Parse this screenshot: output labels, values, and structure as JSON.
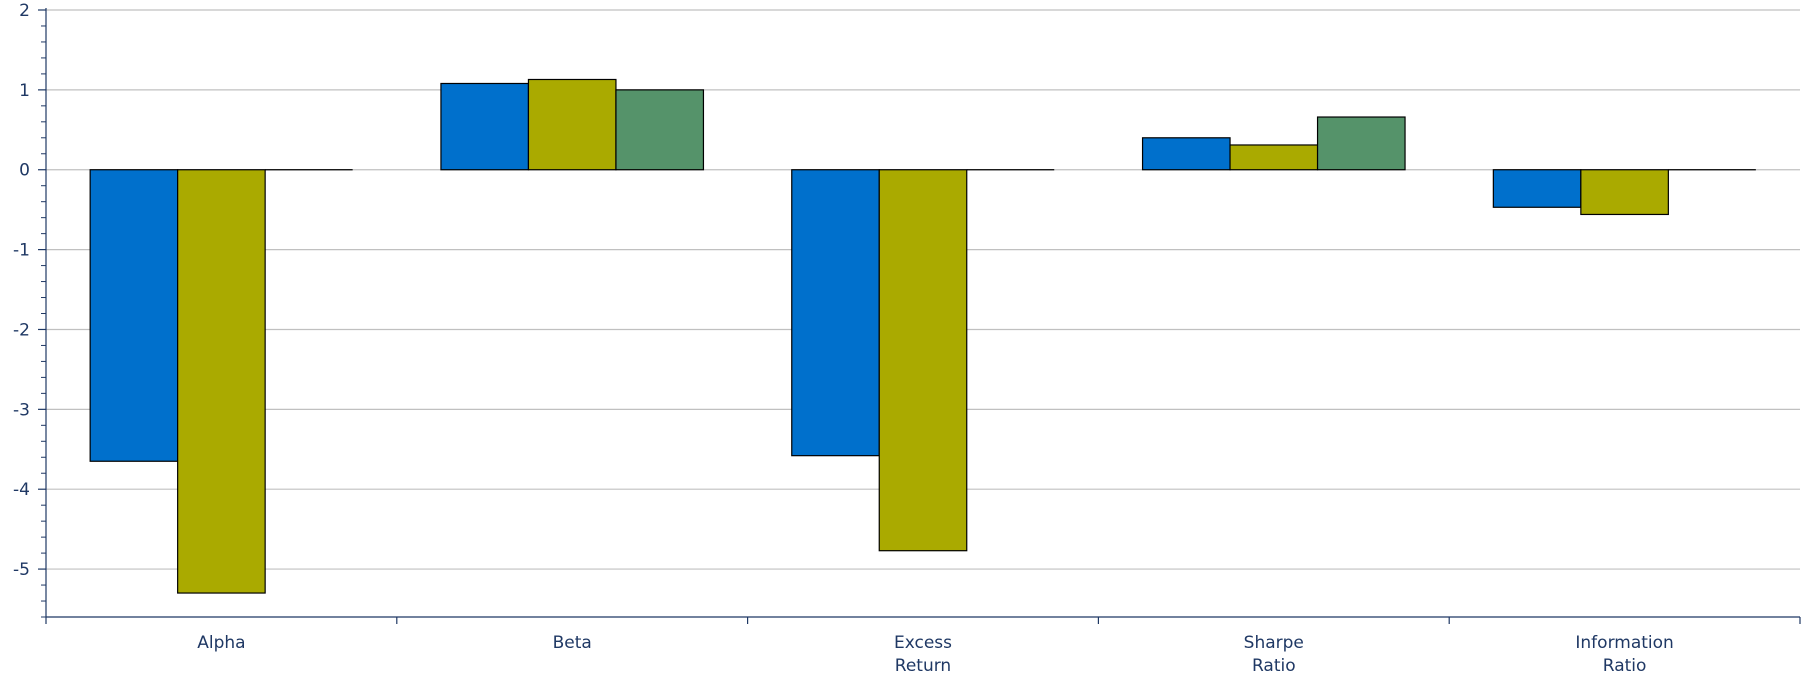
{
  "chart_data": {
    "type": "bar",
    "categories": [
      [
        "Alpha"
      ],
      [
        "Beta"
      ],
      [
        "Excess",
        "Return"
      ],
      [
        "Sharpe",
        "Ratio"
      ],
      [
        "Information",
        "Ratio"
      ]
    ],
    "series": [
      {
        "color": "#0070cc",
        "values": [
          -3.65,
          1.08,
          -3.58,
          0.4,
          -0.47
        ]
      },
      {
        "color": "#aaaa00",
        "values": [
          -5.3,
          1.13,
          -4.77,
          0.31,
          -0.56
        ]
      },
      {
        "color": "#55936a",
        "values": [
          0.0,
          1.0,
          0.0,
          0.66,
          0.0
        ]
      }
    ],
    "ylim": [
      -5.6,
      2
    ],
    "yticks": [
      -5,
      -4,
      -3,
      -2,
      -1,
      0,
      1,
      2
    ],
    "grid": true,
    "gridline_color": "#c0c0c0",
    "axis_color": "#1f3864"
  }
}
